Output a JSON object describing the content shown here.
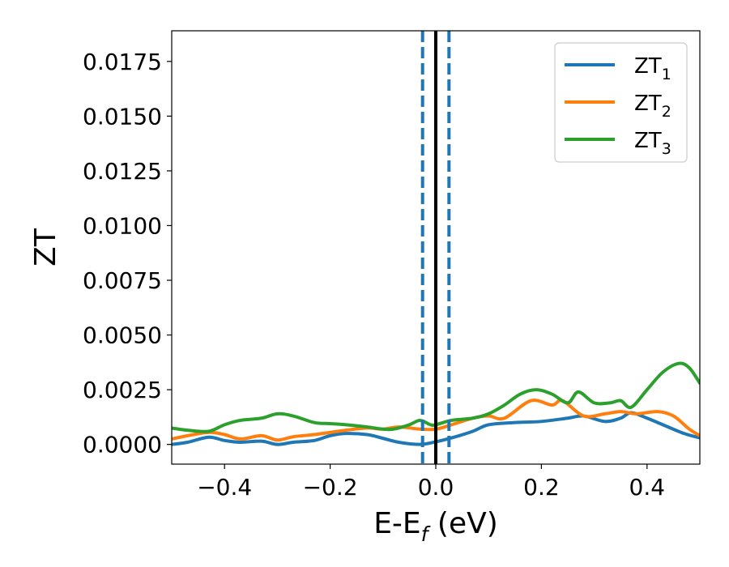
{
  "chart_data": {
    "type": "line",
    "xlabel": "E-E",
    "xlabel_sub": "f",
    "xlabel_unit": " (eV)",
    "ylabel": "ZT",
    "xlim": [
      -0.5,
      0.5
    ],
    "ylim": [
      -0.0009,
      0.0189
    ],
    "xticks": [
      -0.4,
      -0.2,
      0.0,
      0.2,
      0.4
    ],
    "xtick_labels": [
      "−0.4",
      "−0.2",
      "0.0",
      "0.2",
      "0.4"
    ],
    "yticks": [
      0.0,
      0.0025,
      0.005,
      0.0075,
      0.01,
      0.0125,
      0.015,
      0.0175
    ],
    "ytick_labels": [
      "0.0000",
      "0.0025",
      "0.0050",
      "0.0075",
      "0.0100",
      "0.0125",
      "0.0150",
      "0.0175"
    ],
    "grid": false,
    "legend_position": "top-right",
    "vlines": [
      {
        "x": -0.025,
        "style": "dashed",
        "color": "#1f77b4"
      },
      {
        "x": 0.0,
        "style": "solid",
        "color": "#000000"
      },
      {
        "x": 0.025,
        "style": "dashed",
        "color": "#1f77b4"
      }
    ],
    "series": [
      {
        "name": "ZT",
        "name_sub": "1",
        "color": "#1f77b4",
        "x": [
          -0.5,
          -0.47,
          -0.43,
          -0.4,
          -0.37,
          -0.33,
          -0.3,
          -0.27,
          -0.23,
          -0.2,
          -0.17,
          -0.13,
          -0.1,
          -0.07,
          -0.03,
          0.0,
          0.03,
          0.07,
          0.1,
          0.15,
          0.2,
          0.25,
          0.28,
          0.32,
          0.35,
          0.37,
          0.4,
          0.43,
          0.47,
          0.5
        ],
        "y": [
          0.0,
          0.0001,
          0.00033,
          0.00018,
          0.0001,
          0.00015,
          0.0,
          0.0001,
          0.00018,
          0.0004,
          0.0005,
          0.00045,
          0.00028,
          0.0001,
          0.0,
          0.00012,
          0.0003,
          0.0006,
          0.0009,
          0.001,
          0.00105,
          0.0012,
          0.0013,
          0.00105,
          0.0012,
          0.00145,
          0.0012,
          0.0009,
          0.0005,
          0.0003
        ]
      },
      {
        "name": "ZT",
        "name_sub": "2",
        "color": "#ff7f0e",
        "x": [
          -0.5,
          -0.47,
          -0.43,
          -0.4,
          -0.37,
          -0.33,
          -0.3,
          -0.27,
          -0.23,
          -0.2,
          -0.17,
          -0.13,
          -0.1,
          -0.07,
          -0.03,
          0.0,
          0.03,
          0.07,
          0.1,
          0.13,
          0.18,
          0.22,
          0.24,
          0.28,
          0.32,
          0.35,
          0.38,
          0.42,
          0.45,
          0.48,
          0.5
        ],
        "y": [
          0.00025,
          0.0004,
          0.00055,
          0.00045,
          0.00025,
          0.0004,
          0.0002,
          0.00035,
          0.00045,
          0.00055,
          0.00065,
          0.00075,
          0.0007,
          0.0008,
          0.0007,
          0.0007,
          0.0009,
          0.0012,
          0.0013,
          0.0012,
          0.002,
          0.0018,
          0.002,
          0.0013,
          0.0014,
          0.0015,
          0.0014,
          0.0015,
          0.0013,
          0.0007,
          0.0004
        ]
      },
      {
        "name": "ZT",
        "name_sub": "3",
        "color": "#2ca02c",
        "x": [
          -0.5,
          -0.47,
          -0.43,
          -0.4,
          -0.37,
          -0.33,
          -0.3,
          -0.27,
          -0.23,
          -0.2,
          -0.17,
          -0.13,
          -0.1,
          -0.08,
          -0.05,
          -0.03,
          -0.01,
          0.0,
          0.03,
          0.07,
          0.1,
          0.13,
          0.16,
          0.19,
          0.22,
          0.25,
          0.27,
          0.3,
          0.33,
          0.35,
          0.37,
          0.4,
          0.43,
          0.46,
          0.48,
          0.5
        ],
        "y": [
          0.00075,
          0.00065,
          0.0006,
          0.0009,
          0.0011,
          0.0012,
          0.0014,
          0.0013,
          0.001,
          0.00095,
          0.0009,
          0.0008,
          0.0007,
          0.0007,
          0.0009,
          0.0011,
          0.0009,
          0.0009,
          0.0011,
          0.0012,
          0.0014,
          0.0018,
          0.0023,
          0.0025,
          0.0023,
          0.0019,
          0.0024,
          0.0019,
          0.0019,
          0.002,
          0.0017,
          0.0025,
          0.0033,
          0.0037,
          0.0035,
          0.0028
        ]
      }
    ]
  }
}
